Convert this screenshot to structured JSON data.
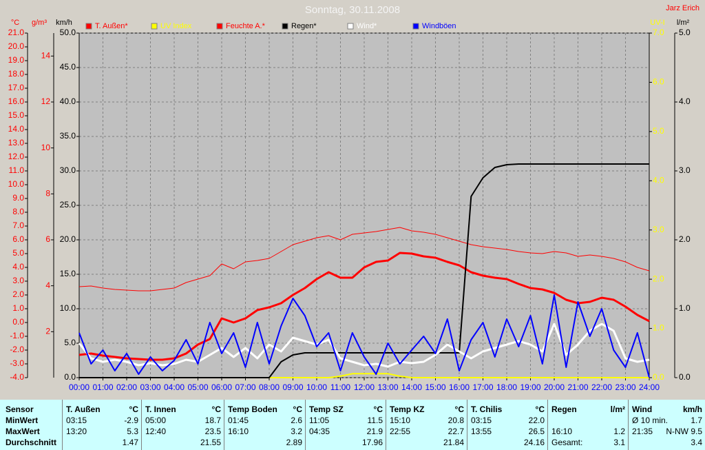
{
  "chart_data": {
    "type": "line",
    "title": "Sonntag, 30.11.2008",
    "author": "Jarz Erich",
    "grid": true,
    "xlim": [
      0,
      24
    ],
    "xticks": [
      {
        "value": 0,
        "label": "00:00"
      },
      {
        "value": 1,
        "label": "01:00"
      },
      {
        "value": 2,
        "label": "02:00"
      },
      {
        "value": 3,
        "label": "03:00"
      },
      {
        "value": 4,
        "label": "04:00"
      },
      {
        "value": 5,
        "label": "05:00"
      },
      {
        "value": 6,
        "label": "06:00"
      },
      {
        "value": 7,
        "label": "07:00"
      },
      {
        "value": 8,
        "label": "08:00"
      },
      {
        "value": 9,
        "label": "09:00"
      },
      {
        "value": 10,
        "label": "10:00"
      },
      {
        "value": 11,
        "label": "11:00"
      },
      {
        "value": 12,
        "label": "12:00"
      },
      {
        "value": 13,
        "label": "13:00"
      },
      {
        "value": 14,
        "label": "14:00"
      },
      {
        "value": 15,
        "label": "15:00"
      },
      {
        "value": 16,
        "label": "16:00"
      },
      {
        "value": 17,
        "label": "17:00"
      },
      {
        "value": 18,
        "label": "18:00"
      },
      {
        "value": 19,
        "label": "19:00"
      },
      {
        "value": 20,
        "label": "20:00"
      },
      {
        "value": 21,
        "label": "21:00"
      },
      {
        "value": 22,
        "label": "22:00"
      },
      {
        "value": 23,
        "label": "23:00"
      },
      {
        "value": 24,
        "label": "24:00"
      }
    ],
    "axes": [
      {
        "label": "°C",
        "color": "#ff0000",
        "lim": [
          -4,
          21
        ],
        "ticks": [
          {
            "value": -4,
            "label": "-4.0"
          },
          {
            "value": -3,
            "label": "-3.0"
          },
          {
            "value": -2,
            "label": "-2.0"
          },
          {
            "value": -1,
            "label": "-1.0"
          },
          {
            "value": 0,
            "label": "0.0"
          },
          {
            "value": 1,
            "label": "1.0"
          },
          {
            "value": 2,
            "label": "2.0"
          },
          {
            "value": 3,
            "label": "3.0"
          },
          {
            "value": 4,
            "label": "4.0"
          },
          {
            "value": 5,
            "label": "5.0"
          },
          {
            "value": 6,
            "label": "6.0"
          },
          {
            "value": 7,
            "label": "7.0"
          },
          {
            "value": 8,
            "label": "8.0"
          },
          {
            "value": 9,
            "label": "9.0"
          },
          {
            "value": 10,
            "label": "10.0"
          },
          {
            "value": 11,
            "label": "11.0"
          },
          {
            "value": 12,
            "label": "12.0"
          },
          {
            "value": 13,
            "label": "13.0"
          },
          {
            "value": 14,
            "label": "14.0"
          },
          {
            "value": 15,
            "label": "15.0"
          },
          {
            "value": 16,
            "label": "16.0"
          },
          {
            "value": 17,
            "label": "17.0"
          },
          {
            "value": 18,
            "label": "18.0"
          },
          {
            "value": 19,
            "label": "19.0"
          },
          {
            "value": 20,
            "label": "20.0"
          },
          {
            "value": 21,
            "label": "21.0"
          }
        ]
      },
      {
        "label": "g/m³",
        "color": "#ff0000",
        "lim": [
          0,
          15
        ],
        "ticks": [
          2,
          4,
          6,
          8,
          10,
          12,
          14
        ]
      },
      {
        "label": "km/h",
        "color": "#000000",
        "lim": [
          0,
          50
        ],
        "ticks": [
          {
            "value": 0,
            "label": "0.0"
          },
          {
            "value": 5,
            "label": "5.0"
          },
          {
            "value": 10,
            "label": "10.0"
          },
          {
            "value": 15,
            "label": "15.0"
          },
          {
            "value": 20,
            "label": "20.0"
          },
          {
            "value": 25,
            "label": "25.0"
          },
          {
            "value": 30,
            "label": "30.0"
          },
          {
            "value": 35,
            "label": "35.0"
          },
          {
            "value": 40,
            "label": "40.0"
          },
          {
            "value": 45,
            "label": "45.0"
          },
          {
            "value": 50,
            "label": "50.0"
          }
        ]
      },
      {
        "label": "UV-I",
        "color": "#ffff00",
        "lim": [
          0,
          7
        ],
        "ticks": [
          {
            "value": 0,
            "label": "0.0"
          },
          {
            "value": 1,
            "label": "1.0"
          },
          {
            "value": 2,
            "label": "2.0"
          },
          {
            "value": 3,
            "label": "3.0"
          },
          {
            "value": 4,
            "label": "4.0"
          },
          {
            "value": 5,
            "label": "5.0"
          },
          {
            "value": 6,
            "label": "6.0"
          },
          {
            "value": 7,
            "label": "7.0"
          }
        ]
      },
      {
        "label": "l/m²",
        "color": "#000000",
        "lim": [
          0,
          5
        ],
        "ticks": [
          {
            "value": 0,
            "label": "0.0"
          },
          {
            "value": 1,
            "label": "1.0"
          },
          {
            "value": 2,
            "label": "2.0"
          },
          {
            "value": 3,
            "label": "3.0"
          },
          {
            "value": 4,
            "label": "4.0"
          },
          {
            "value": 5,
            "label": "5.0"
          }
        ]
      }
    ],
    "x": [
      0,
      0.5,
      1,
      1.5,
      2,
      2.5,
      3,
      3.5,
      4,
      4.5,
      5,
      5.5,
      6,
      6.5,
      7,
      7.5,
      8,
      8.5,
      9,
      9.5,
      10,
      10.5,
      11,
      11.5,
      12,
      12.5,
      13,
      13.5,
      14,
      14.5,
      15,
      15.5,
      16,
      16.5,
      17,
      17.5,
      18,
      18.5,
      19,
      19.5,
      20,
      20.5,
      21,
      21.5,
      22,
      22.5,
      23,
      23.5,
      24
    ],
    "series": [
      {
        "name": "T. Außen*",
        "color": "#ff0000",
        "width": 3,
        "axis": 0,
        "values": [
          -2.35,
          -2.25,
          -2.4,
          -2.5,
          -2.6,
          -2.65,
          -2.7,
          -2.7,
          -2.6,
          -2.25,
          -1.6,
          -1.2,
          0.3,
          0,
          0.3,
          0.9,
          1.1,
          1.4,
          2.0,
          2.5,
          3.15,
          3.65,
          3.25,
          3.25,
          4.0,
          4.4,
          4.5,
          5.05,
          5.0,
          4.8,
          4.7,
          4.4,
          4.15,
          3.65,
          3.4,
          3.25,
          3.15,
          2.8,
          2.5,
          2.4,
          2.15,
          1.65,
          1.4,
          1.5,
          1.8,
          1.65,
          1.15,
          0.55,
          0.1
        ]
      },
      {
        "name": "UV Index",
        "color": "#ffff00",
        "width": 2,
        "axis": 3,
        "values": [
          0,
          0,
          0,
          0,
          0,
          0,
          0,
          0,
          0,
          0,
          0,
          0,
          0,
          0,
          0,
          0,
          0,
          0,
          0,
          0,
          0,
          0,
          0.03,
          0.08,
          0.08,
          0.08,
          0.08,
          0.03,
          0,
          0,
          0,
          0,
          0,
          0,
          0,
          0,
          0,
          0,
          0,
          0,
          0,
          0,
          0,
          0,
          0,
          0,
          0,
          0,
          0
        ]
      },
      {
        "name": "Feuchte A.*",
        "color": "#ff0000",
        "width": 1,
        "axis": 1,
        "values": [
          3.96,
          3.99,
          3.9,
          3.84,
          3.81,
          3.78,
          3.78,
          3.84,
          3.9,
          4.14,
          4.29,
          4.44,
          4.95,
          4.74,
          5.04,
          5.1,
          5.19,
          5.49,
          5.79,
          5.94,
          6.09,
          6.18,
          6.0,
          6.24,
          6.3,
          6.36,
          6.45,
          6.54,
          6.39,
          6.33,
          6.24,
          6.09,
          5.94,
          5.79,
          5.7,
          5.64,
          5.58,
          5.49,
          5.43,
          5.4,
          5.49,
          5.43,
          5.28,
          5.34,
          5.28,
          5.19,
          5.04,
          4.8,
          4.65
        ]
      },
      {
        "name": "Regen*",
        "color": "#000000",
        "width": 2,
        "axis": 4,
        "values": [
          0,
          0,
          0,
          0,
          0,
          0,
          0,
          0,
          0,
          0,
          0,
          0,
          0,
          0,
          0,
          0,
          0,
          0.23,
          0.33,
          0.36,
          0.36,
          0.36,
          0.36,
          0.36,
          0.36,
          0.36,
          0.36,
          0.36,
          0.36,
          0.36,
          0.36,
          0.36,
          0.36,
          2.63,
          2.9,
          3.05,
          3.09,
          3.1,
          3.1,
          3.1,
          3.1,
          3.1,
          3.1,
          3.1,
          3.1,
          3.1,
          3.1,
          3.1,
          3.1
        ]
      },
      {
        "name": "Wind*",
        "color": "#ffffff",
        "width": 3,
        "axis": 2,
        "values": [
          5.0,
          2.8,
          2.3,
          2.6,
          2.3,
          1.8,
          2.1,
          1.8,
          2.0,
          2.6,
          2.3,
          3.3,
          4.3,
          3.0,
          4.3,
          2.8,
          4.8,
          3.8,
          5.8,
          5.3,
          4.8,
          5.5,
          2.8,
          2.3,
          1.8,
          2.0,
          1.6,
          2.3,
          2.1,
          2.3,
          3.3,
          4.8,
          3.8,
          2.8,
          3.8,
          4.3,
          4.8,
          5.3,
          4.8,
          3.8,
          7.8,
          3.3,
          4.8,
          6.8,
          7.8,
          6.8,
          2.8,
          2.3,
          2.6
        ]
      },
      {
        "name": "Windböen",
        "color": "#0000ff",
        "width": 2,
        "axis": 2,
        "values": [
          6.5,
          2.0,
          4.0,
          1.0,
          3.5,
          0.5,
          3.0,
          1.0,
          2.5,
          5.5,
          2.0,
          8.0,
          3.5,
          6.5,
          1.5,
          8.0,
          2.0,
          7.5,
          11.5,
          9.0,
          4.5,
          6.5,
          1.0,
          6.5,
          3.0,
          0.5,
          5.0,
          2.0,
          4.0,
          6.0,
          3.5,
          8.5,
          1.0,
          5.5,
          8.0,
          3.0,
          8.5,
          4.5,
          9.0,
          2.0,
          12.0,
          1.5,
          11.0,
          6.0,
          10.0,
          4.0,
          1.5,
          6.5,
          0.0
        ]
      }
    ]
  },
  "table": {
    "row_labels": [
      "Sensor",
      "MinWert",
      "MaxWert",
      "Durchschnitt"
    ],
    "columns": [
      {
        "name": "T. Außen",
        "unit": "°C",
        "min": [
          "03:15",
          "-2.9"
        ],
        "max": [
          "13:20",
          "5.3"
        ],
        "avg": [
          "1.47"
        ]
      },
      {
        "name": "T. Innen",
        "unit": "°C",
        "min": [
          "05:00",
          "18.7"
        ],
        "max": [
          "12:40",
          "23.5"
        ],
        "avg": [
          "21.55"
        ]
      },
      {
        "name": "Temp Boden",
        "unit": "°C",
        "min": [
          "01:45",
          "2.6"
        ],
        "max": [
          "16:10",
          "3.2"
        ],
        "avg": [
          "2.89"
        ]
      },
      {
        "name": "Temp SZ",
        "unit": "°C",
        "min": [
          "11:05",
          "11.5"
        ],
        "max": [
          "04:35",
          "21.9"
        ],
        "avg": [
          "17.96"
        ]
      },
      {
        "name": "Temp KZ",
        "unit": "°C",
        "min": [
          "15:10",
          "20.8"
        ],
        "max": [
          "22:55",
          "22.7"
        ],
        "avg": [
          "21.84"
        ]
      },
      {
        "name": "T. Chilis",
        "unit": "°C",
        "min": [
          "03:15",
          "22.0"
        ],
        "max": [
          "13:55",
          "26.5"
        ],
        "avg": [
          "24.16"
        ]
      },
      {
        "name": "Regen",
        "unit": "l/m²",
        "max": [
          "16:10",
          "1.2"
        ],
        "avg": [
          "Gesamt:",
          "3.1"
        ]
      },
      {
        "name": "Wind",
        "unit": "km/h",
        "min": [
          "Ø 10 min.",
          "1.7"
        ],
        "max": [
          "21:35",
          "N-NW 9.5"
        ],
        "avg": [
          "3.4"
        ]
      }
    ]
  }
}
